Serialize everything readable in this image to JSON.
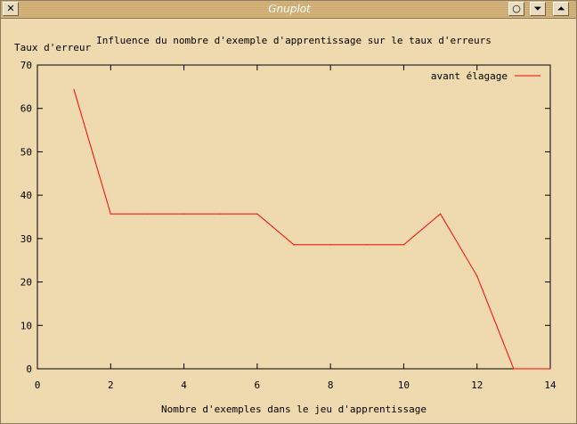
{
  "window": {
    "title": "Gnuplot",
    "close_glyph": "✕",
    "iconify_glyph": "○",
    "shade_glyph": "⏷",
    "maximize_glyph": "⏶"
  },
  "colors": {
    "background": "#efdab0",
    "series": "#ff0000",
    "axes": "#000000"
  },
  "chart_data": {
    "type": "line",
    "title": "Influence du nombre d'exemple d'apprentissage sur le taux d'erreurs",
    "xlabel": "Nombre d'exemples dans le jeu d'apprentissage",
    "ylabel": "Taux d'erreur",
    "xlim": [
      0,
      14
    ],
    "ylim": [
      0,
      70
    ],
    "xticks": [
      0,
      2,
      4,
      6,
      8,
      10,
      12,
      14
    ],
    "yticks": [
      0,
      10,
      20,
      30,
      40,
      50,
      60,
      70
    ],
    "grid": false,
    "legend_position": "top-right",
    "series": [
      {
        "name": "avant élagage",
        "x": [
          1,
          2,
          3,
          4,
          5,
          6,
          7,
          8,
          9,
          10,
          11,
          12,
          13,
          14
        ],
        "y": [
          64.3,
          35.7,
          35.7,
          35.7,
          35.7,
          35.7,
          28.6,
          28.6,
          28.6,
          28.6,
          35.7,
          21.4,
          0,
          0
        ]
      }
    ]
  }
}
